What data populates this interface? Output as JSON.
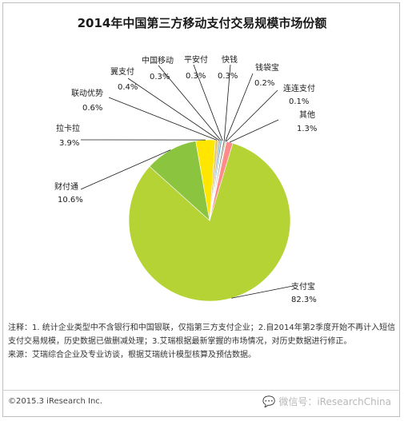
{
  "title": "2014年中国第三方移动支付交易规模市场份额",
  "chart_data": {
    "type": "pie",
    "title": "2014年中国第三方移动支付交易规模市场份额",
    "slices": [
      {
        "name": "支付宝",
        "value": 82.3,
        "label": "82.3%",
        "color": "#b5d334"
      },
      {
        "name": "财付通",
        "value": 10.6,
        "label": "10.6%",
        "color": "#8bc43f"
      },
      {
        "name": "拉卡拉",
        "value": 3.9,
        "label": "3.9%",
        "color": "#ffe600"
      },
      {
        "name": "联动优势",
        "value": 0.6,
        "label": "0.6%",
        "color": "#e6c86e"
      },
      {
        "name": "翼支付",
        "value": 0.4,
        "label": "0.4%",
        "color": "#b7b7b7"
      },
      {
        "name": "中国移动",
        "value": 0.3,
        "label": "0.3%",
        "color": "#4bacc6"
      },
      {
        "name": "平安付",
        "value": 0.3,
        "label": "0.3%",
        "color": "#ffffff"
      },
      {
        "name": "快钱",
        "value": 0.3,
        "label": "0.3%",
        "color": "#7f7f7f"
      },
      {
        "name": "钱袋宝",
        "value": 0.2,
        "label": "0.2%",
        "color": "#9bbb59"
      },
      {
        "name": "连连支付",
        "value": 0.1,
        "label": "0.1%",
        "color": "#f2dcdb"
      },
      {
        "name": "其他",
        "value": 1.3,
        "label": "1.3%",
        "color": "#ff8a8a"
      }
    ]
  },
  "notes": {
    "line1": "注释：1. 统计企业类型中不含银行和中国银联，仅指第三方支付企业；2.自2014年第2季度开始不再计入短信支付交易规模，历史数据已做删减处理；3.艾瑞根据最新掌握的市场情况，对历史数据进行修正。",
    "line2": "来源：艾瑞综合企业及专业访谈，根据艾瑞统计模型核算及预估数据。"
  },
  "footer": {
    "copyright": "©2015.3 iResearch Inc.",
    "watermark": "微信号：iResearchChina"
  }
}
